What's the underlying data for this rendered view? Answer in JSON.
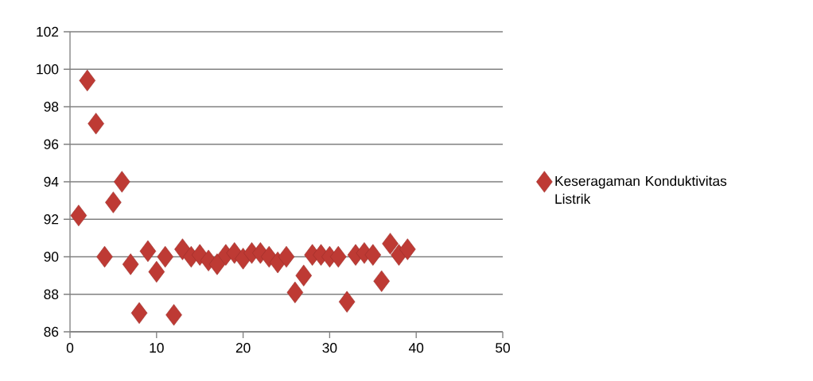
{
  "chart_data": {
    "type": "scatter",
    "x": [
      1,
      2,
      3,
      4,
      5,
      6,
      7,
      8,
      9,
      10,
      11,
      12,
      13,
      14,
      15,
      16,
      17,
      18,
      19,
      20,
      21,
      22,
      23,
      24,
      25,
      26,
      27,
      28,
      29,
      30,
      31,
      32,
      33,
      34,
      35,
      36,
      37,
      38,
      39
    ],
    "series": [
      {
        "name": "Keseragaman Konduktivitas Listrik",
        "color": "#be3a34",
        "values": [
          92.2,
          99.4,
          97.1,
          90.0,
          92.9,
          94.0,
          89.6,
          87.0,
          90.3,
          89.2,
          90.0,
          86.9,
          90.4,
          90.0,
          90.1,
          89.8,
          89.6,
          90.1,
          90.2,
          89.9,
          90.2,
          90.2,
          90.0,
          89.7,
          90.0,
          88.1,
          89.0,
          90.1,
          90.1,
          90.0,
          90.0,
          87.6,
          90.1,
          90.2,
          90.1,
          88.7,
          90.7,
          90.1,
          90.4
        ]
      }
    ],
    "xlim": [
      0,
      50
    ],
    "xticks": [
      0,
      10,
      20,
      30,
      40,
      50
    ],
    "ylim": [
      86,
      102
    ],
    "yticks": [
      86,
      88,
      90,
      92,
      94,
      96,
      98,
      100,
      102
    ],
    "grid": "y",
    "legend": "right",
    "marker": "diamond"
  }
}
